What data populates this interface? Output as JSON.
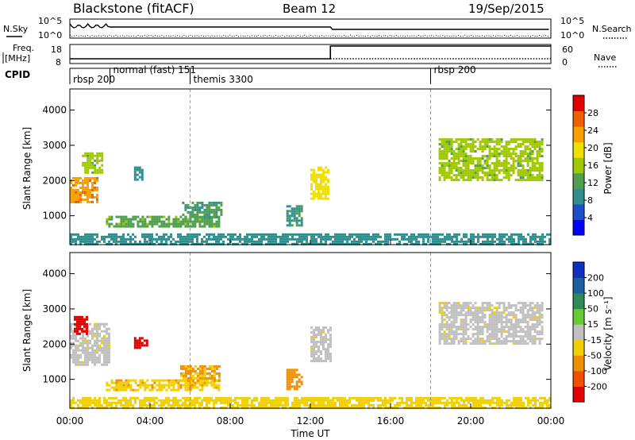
{
  "header": {
    "site": "Blackstone (fitACF)",
    "beam": "Beam 12",
    "date": "19/Sep/2015"
  },
  "noise_panel": {
    "left_label": "N.Sky",
    "right_label": "N.Search",
    "left_ticks": [
      "10^5",
      "10^0"
    ],
    "right_ticks": [
      "10^5",
      "10^0"
    ]
  },
  "freq_panel": {
    "left_label_1": "Freq.",
    "left_label_2": "[MHz]",
    "right_label": "Nave",
    "left_ticks": [
      "18",
      "8"
    ],
    "right_ticks": [
      "60",
      "0"
    ]
  },
  "cpid_panel": {
    "label": "CPID",
    "segments": [
      {
        "label": "rbsp 200",
        "start_hour": 0.0
      },
      {
        "label": "normal (fast) 151",
        "start_hour": 2.0
      },
      {
        "label": "themis 3300",
        "start_hour": 6.0
      },
      {
        "label": "rbsp 200",
        "start_hour": 18.0
      }
    ]
  },
  "axes": {
    "xlabel": "Time UT",
    "ylabel": "Slant Range [km]",
    "x_ticks": [
      "00:00",
      "04:00",
      "08:00",
      "12:00",
      "16:00",
      "20:00",
      "00:00"
    ],
    "x_tick_hours": [
      0,
      4,
      8,
      12,
      16,
      20,
      24
    ],
    "y_ticks": [
      "1000",
      "2000",
      "3000",
      "4000"
    ],
    "y_tick_values": [
      1000,
      2000,
      3000,
      4000
    ]
  },
  "power_colorbar": {
    "label": "Power [dB]",
    "ticks": [
      "4",
      "8",
      "12",
      "16",
      "20",
      "24",
      "28"
    ],
    "colors": [
      "#0000ff",
      "#1f4ec8",
      "#2f8f8f",
      "#4f9f4f",
      "#9fc800",
      "#f0e000",
      "#f8a000",
      "#f06000",
      "#e00000"
    ]
  },
  "velocity_colorbar": {
    "label": "Velocity [m s⁻¹]",
    "ticks": [
      "200",
      "100",
      "50",
      "15",
      "-15",
      "-50",
      "-100",
      "-200"
    ],
    "colors": [
      "#1030c0",
      "#1a60a0",
      "#2e8b57",
      "#66cc33",
      "#c0c0c0",
      "#f0d000",
      "#f09000",
      "#f05000",
      "#e00000"
    ]
  },
  "chart_data": [
    {
      "type": "heatmap",
      "title": "Power",
      "xlabel": "Time UT",
      "ylabel": "Slant Range [km]",
      "xlim": [
        0,
        24
      ],
      "ylim": [
        180,
        4600
      ],
      "value_label": "Power [dB]",
      "value_range": [
        0,
        30
      ],
      "regions": [
        {
          "t0": 0.0,
          "t1": 1.4,
          "r0": 1400,
          "r1": 2100,
          "value": 22
        },
        {
          "t0": 0.6,
          "t1": 1.6,
          "r0": 2200,
          "r1": 2800,
          "value": 14
        },
        {
          "t0": 1.8,
          "t1": 7.4,
          "r0": 700,
          "r1": 1000,
          "value": 12
        },
        {
          "t0": 5.6,
          "t1": 7.6,
          "r0": 950,
          "r1": 1400,
          "value": 10
        },
        {
          "t0": 3.2,
          "t1": 3.6,
          "r0": 2000,
          "r1": 2400,
          "value": 8
        },
        {
          "t0": 10.8,
          "t1": 11.6,
          "r0": 700,
          "r1": 1300,
          "value": 9
        },
        {
          "t0": 12.0,
          "t1": 12.9,
          "r0": 1500,
          "r1": 2400,
          "value": 18
        },
        {
          "t0": 18.4,
          "t1": 23.6,
          "r0": 2000,
          "r1": 3200,
          "value": 14
        },
        {
          "t0": 0.0,
          "t1": 24.0,
          "r0": 180,
          "r1": 500,
          "value": 8
        }
      ]
    },
    {
      "type": "heatmap",
      "title": "Velocity",
      "xlabel": "Time UT",
      "ylabel": "Slant Range [km]",
      "xlim": [
        0,
        24
      ],
      "ylim": [
        180,
        4600
      ],
      "value_label": "Velocity [m s⁻¹]",
      "value_range": [
        -200,
        200
      ],
      "regions": [
        {
          "t0": 0.0,
          "t1": 2.0,
          "r0": 1400,
          "r1": 2600,
          "value": 0
        },
        {
          "t0": 0.2,
          "t1": 0.8,
          "r0": 2300,
          "r1": 2800,
          "value": -200
        },
        {
          "t0": 3.2,
          "t1": 3.8,
          "r0": 1900,
          "r1": 2200,
          "value": -200
        },
        {
          "t0": 1.8,
          "t1": 7.5,
          "r0": 700,
          "r1": 1000,
          "value": -50
        },
        {
          "t0": 5.5,
          "t1": 7.5,
          "r0": 950,
          "r1": 1400,
          "value": -60
        },
        {
          "t0": 10.8,
          "t1": 11.6,
          "r0": 700,
          "r1": 1300,
          "value": -80
        },
        {
          "t0": 12.0,
          "t1": 13.0,
          "r0": 1500,
          "r1": 2500,
          "value": 0
        },
        {
          "t0": 18.4,
          "t1": 23.6,
          "r0": 2000,
          "r1": 3200,
          "value": 0
        },
        {
          "t0": 0.0,
          "t1": 24.0,
          "r0": 180,
          "r1": 500,
          "value": -40
        }
      ]
    }
  ]
}
